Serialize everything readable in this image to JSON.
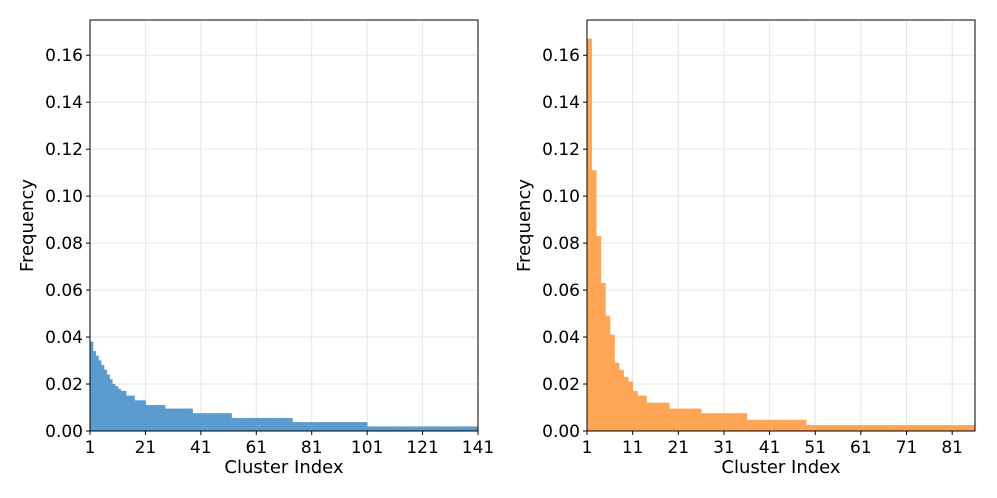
{
  "chart_data": [
    {
      "type": "bar",
      "color": "#5a9bd0",
      "xlabel": "Cluster Index",
      "ylabel": "Frequency",
      "xlim": [
        1,
        141
      ],
      "ylim": [
        0,
        0.175
      ],
      "grid": true,
      "x_ticks": [
        "1",
        "21",
        "41",
        "61",
        "81",
        "101",
        "121",
        "141"
      ],
      "y_ticks": [
        "0.00",
        "0.02",
        "0.04",
        "0.06",
        "0.08",
        "0.10",
        "0.12",
        "0.14",
        "0.16"
      ],
      "x": [
        1,
        2,
        3,
        4,
        5,
        6,
        7,
        8,
        9,
        10,
        11,
        12,
        13,
        14,
        15,
        16,
        17,
        18,
        19,
        20,
        21,
        22,
        23,
        24,
        25,
        26,
        27,
        28,
        29,
        30,
        31,
        32,
        33,
        34,
        35,
        36,
        37,
        38,
        39,
        40,
        41,
        42,
        43,
        44,
        45,
        46,
        47,
        48,
        49,
        50,
        51,
        52,
        53,
        54,
        55,
        56,
        57,
        58,
        59,
        60,
        61,
        62,
        63,
        64,
        65,
        66,
        67,
        68,
        69,
        70,
        71,
        72,
        73,
        74,
        75,
        76,
        77,
        78,
        79,
        80,
        81,
        82,
        83,
        84,
        85,
        86,
        87,
        88,
        89,
        90,
        91,
        92,
        93,
        94,
        95,
        96,
        97,
        98,
        99,
        100,
        101,
        102,
        103,
        104,
        105,
        106,
        107,
        108,
        109,
        110,
        111,
        112,
        113,
        114,
        115,
        116,
        117,
        118,
        119,
        120,
        121,
        122,
        123,
        124,
        125,
        126,
        127,
        128,
        129,
        130,
        131,
        132,
        133,
        134,
        135,
        136,
        137,
        138,
        139,
        140
      ],
      "values": [
        0.038,
        0.034,
        0.032,
        0.03,
        0.028,
        0.026,
        0.024,
        0.022,
        0.02,
        0.019,
        0.018,
        0.017,
        0.017,
        0.015,
        0.015,
        0.015,
        0.013,
        0.013,
        0.013,
        0.013,
        0.011,
        0.011,
        0.011,
        0.011,
        0.011,
        0.011,
        0.011,
        0.0095,
        0.0095,
        0.0095,
        0.0095,
        0.0095,
        0.0095,
        0.0095,
        0.0095,
        0.0095,
        0.0095,
        0.0075,
        0.0075,
        0.0075,
        0.0075,
        0.0075,
        0.0075,
        0.0075,
        0.0075,
        0.0075,
        0.0075,
        0.0075,
        0.0075,
        0.0075,
        0.0075,
        0.0055,
        0.0055,
        0.0055,
        0.0055,
        0.0055,
        0.0055,
        0.0055,
        0.0055,
        0.0055,
        0.0055,
        0.0055,
        0.0055,
        0.0055,
        0.0055,
        0.0055,
        0.0055,
        0.0055,
        0.0055,
        0.0055,
        0.0055,
        0.0055,
        0.0055,
        0.0037,
        0.0037,
        0.0037,
        0.0037,
        0.0037,
        0.0037,
        0.0037,
        0.0037,
        0.0037,
        0.0037,
        0.0037,
        0.0037,
        0.0037,
        0.0037,
        0.0037,
        0.0037,
        0.0037,
        0.0037,
        0.0037,
        0.0037,
        0.0037,
        0.0037,
        0.0037,
        0.0037,
        0.0037,
        0.0037,
        0.0037,
        0.0019,
        0.0019,
        0.0019,
        0.0019,
        0.0019,
        0.0019,
        0.0019,
        0.0019,
        0.0019,
        0.0019,
        0.0019,
        0.0019,
        0.0019,
        0.0019,
        0.0019,
        0.0019,
        0.0019,
        0.0019,
        0.0019,
        0.0019,
        0.0019,
        0.0019,
        0.0019,
        0.0019,
        0.0019,
        0.0019,
        0.0019,
        0.0019,
        0.0019,
        0.0019,
        0.0019,
        0.0019,
        0.0019,
        0.0019,
        0.0019,
        0.0019,
        0.0019,
        0.0019,
        0.0019,
        0.0019
      ]
    },
    {
      "type": "bar",
      "color": "#ffa556",
      "xlabel": "Cluster Index",
      "ylabel": "Frequency",
      "xlim": [
        1,
        86
      ],
      "ylim": [
        0,
        0.175
      ],
      "grid": true,
      "x_ticks": [
        "1",
        "11",
        "21",
        "31",
        "41",
        "51",
        "61",
        "71",
        "81"
      ],
      "y_ticks": [
        "0.00",
        "0.02",
        "0.04",
        "0.06",
        "0.08",
        "0.10",
        "0.12",
        "0.14",
        "0.16"
      ],
      "x": [
        1,
        2,
        3,
        4,
        5,
        6,
        7,
        8,
        9,
        10,
        11,
        12,
        13,
        14,
        15,
        16,
        17,
        18,
        19,
        20,
        21,
        22,
        23,
        24,
        25,
        26,
        27,
        28,
        29,
        30,
        31,
        32,
        33,
        34,
        35,
        36,
        37,
        38,
        39,
        40,
        41,
        42,
        43,
        44,
        45,
        46,
        47,
        48,
        49,
        50,
        51,
        52,
        53,
        54,
        55,
        56,
        57,
        58,
        59,
        60,
        61,
        62,
        63,
        64,
        65,
        66,
        67,
        68,
        69,
        70,
        71,
        72,
        73,
        74,
        75,
        76,
        77,
        78,
        79,
        80,
        81,
        82,
        83,
        84,
        85
      ],
      "values": [
        0.167,
        0.111,
        0.083,
        0.063,
        0.049,
        0.041,
        0.029,
        0.026,
        0.023,
        0.021,
        0.017,
        0.015,
        0.015,
        0.012,
        0.012,
        0.012,
        0.012,
        0.012,
        0.0095,
        0.0095,
        0.0095,
        0.0095,
        0.0095,
        0.0095,
        0.0095,
        0.0075,
        0.0075,
        0.0075,
        0.0075,
        0.0075,
        0.0075,
        0.0075,
        0.0075,
        0.0075,
        0.0075,
        0.0047,
        0.0047,
        0.0047,
        0.0047,
        0.0047,
        0.0047,
        0.0047,
        0.0047,
        0.0047,
        0.0047,
        0.0047,
        0.0047,
        0.0047,
        0.0025,
        0.0025,
        0.0025,
        0.0025,
        0.0025,
        0.0025,
        0.0025,
        0.0025,
        0.0025,
        0.0025,
        0.0025,
        0.0025,
        0.0025,
        0.0025,
        0.0025,
        0.0025,
        0.0025,
        0.0025,
        0.0025,
        0.0025,
        0.0025,
        0.0025,
        0.0025,
        0.0025,
        0.0025,
        0.0025,
        0.0025,
        0.0025,
        0.0025,
        0.0025,
        0.0025,
        0.0025,
        0.0025,
        0.0025,
        0.0025,
        0.0025,
        0.0025
      ]
    }
  ]
}
